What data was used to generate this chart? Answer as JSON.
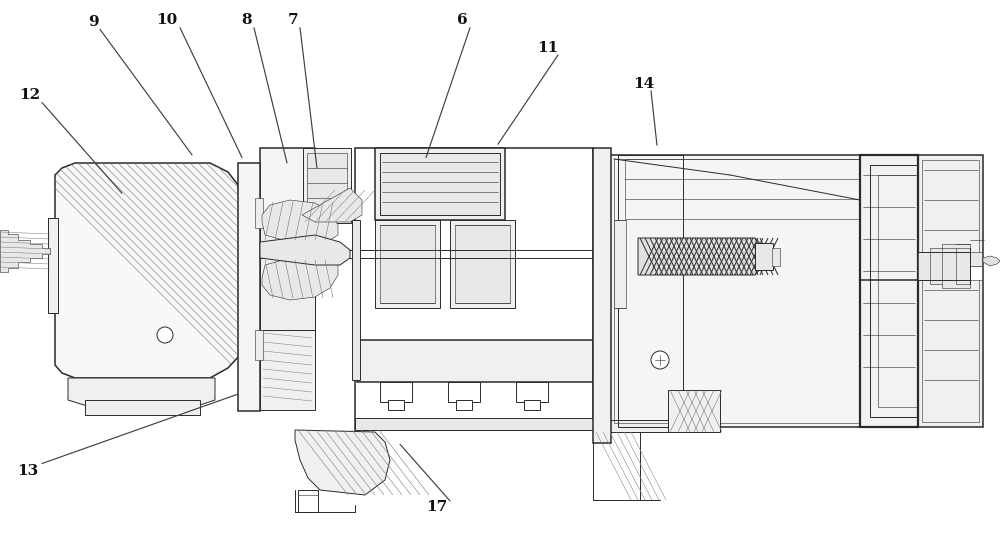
{
  "bg_color": "#ffffff",
  "line_color": "#2a2a2a",
  "fig_width": 10.0,
  "fig_height": 5.34,
  "labels": [
    {
      "text": "9",
      "xn": 0.093,
      "yn": 0.042
    },
    {
      "text": "10",
      "xn": 0.167,
      "yn": 0.038
    },
    {
      "text": "8",
      "xn": 0.247,
      "yn": 0.038
    },
    {
      "text": "7",
      "xn": 0.293,
      "yn": 0.038
    },
    {
      "text": "6",
      "xn": 0.462,
      "yn": 0.038
    },
    {
      "text": "11",
      "xn": 0.548,
      "yn": 0.09
    },
    {
      "text": "14",
      "xn": 0.644,
      "yn": 0.158
    },
    {
      "text": "12",
      "xn": 0.03,
      "yn": 0.178
    },
    {
      "text": "13",
      "xn": 0.028,
      "yn": 0.882
    },
    {
      "text": "17",
      "xn": 0.437,
      "yn": 0.95
    }
  ],
  "leader_lines": [
    {
      "x1n": 0.1,
      "y1n": 0.055,
      "x2n": 0.192,
      "y2n": 0.29
    },
    {
      "x1n": 0.18,
      "y1n": 0.052,
      "x2n": 0.242,
      "y2n": 0.295
    },
    {
      "x1n": 0.254,
      "y1n": 0.052,
      "x2n": 0.287,
      "y2n": 0.305
    },
    {
      "x1n": 0.3,
      "y1n": 0.052,
      "x2n": 0.317,
      "y2n": 0.315
    },
    {
      "x1n": 0.47,
      "y1n": 0.052,
      "x2n": 0.426,
      "y2n": 0.295
    },
    {
      "x1n": 0.558,
      "y1n": 0.103,
      "x2n": 0.498,
      "y2n": 0.27
    },
    {
      "x1n": 0.651,
      "y1n": 0.17,
      "x2n": 0.657,
      "y2n": 0.272
    },
    {
      "x1n": 0.042,
      "y1n": 0.192,
      "x2n": 0.122,
      "y2n": 0.362
    },
    {
      "x1n": 0.042,
      "y1n": 0.868,
      "x2n": 0.238,
      "y2n": 0.738
    },
    {
      "x1n": 0.45,
      "y1n": 0.938,
      "x2n": 0.4,
      "y2n": 0.832
    }
  ]
}
